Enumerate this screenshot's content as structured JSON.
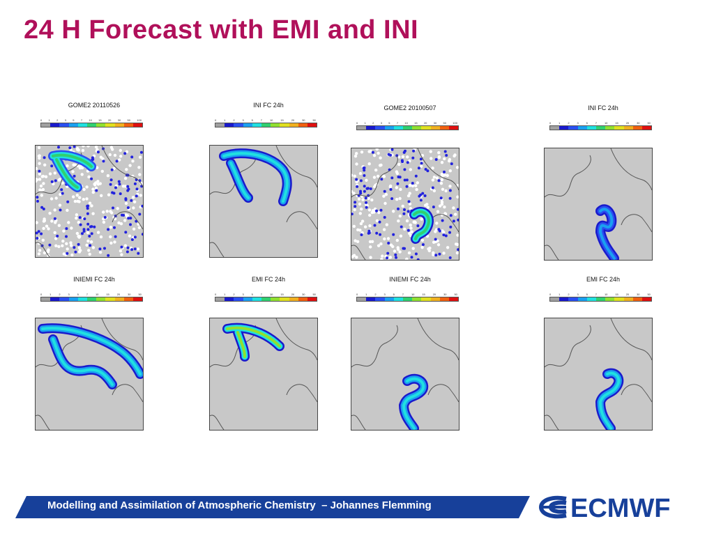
{
  "slide": {
    "title": "24 H Forecast with EMI and INI",
    "footer_text": "Modelling and Assimilation of Atmospheric Chemistry  – Johannes Flemming",
    "logo_text": "ECMWF",
    "colors": {
      "title": "#b0105a",
      "footer_band": "#17409a",
      "logo": "#17409a"
    }
  },
  "colorbar": {
    "colors": [
      "#a0a0a0",
      "#1a1acc",
      "#2a4ff0",
      "#1aa0f0",
      "#20e0e0",
      "#30d070",
      "#90e030",
      "#e0e020",
      "#f0b020",
      "#f06010",
      "#e01010"
    ]
  },
  "panels": [
    {
      "title": "GOME2 20110526",
      "ticks": [
        "0",
        "1",
        "2",
        "3",
        "5",
        "7",
        "10",
        "15",
        "20",
        "30",
        "50",
        "100"
      ]
    },
    {
      "title": "INI FC 24h",
      "ticks": [
        "0",
        "1",
        "2",
        "3",
        "5",
        "7",
        "10",
        "15",
        "20",
        "30",
        "50"
      ]
    },
    {
      "title": "GOME2 20100507",
      "ticks": [
        "0",
        "1",
        "2",
        "3",
        "5",
        "7",
        "10",
        "15",
        "20",
        "30",
        "50",
        "100"
      ]
    },
    {
      "title": "INI FC 24h",
      "ticks": [
        "0",
        "1",
        "2",
        "3",
        "5",
        "7",
        "10",
        "15",
        "20",
        "30",
        "50"
      ]
    },
    {
      "title": "INIEMI FC 24h",
      "ticks": [
        "0",
        "1",
        "2",
        "3",
        "5",
        "7",
        "10",
        "15",
        "20",
        "30",
        "50"
      ]
    },
    {
      "title": "EMI FC 24h",
      "ticks": [
        "0",
        "1",
        "2",
        "3",
        "5",
        "7",
        "10",
        "15",
        "20",
        "30",
        "50"
      ]
    },
    {
      "title": "INIEMI FC 24h",
      "ticks": [
        "0",
        "1",
        "2",
        "3",
        "5",
        "7",
        "10",
        "15",
        "20",
        "30",
        "50"
      ]
    },
    {
      "title": "EMI FC 24h",
      "ticks": [
        "0",
        "1",
        "2",
        "3",
        "5",
        "7",
        "10",
        "15",
        "20",
        "30",
        "50"
      ]
    }
  ]
}
